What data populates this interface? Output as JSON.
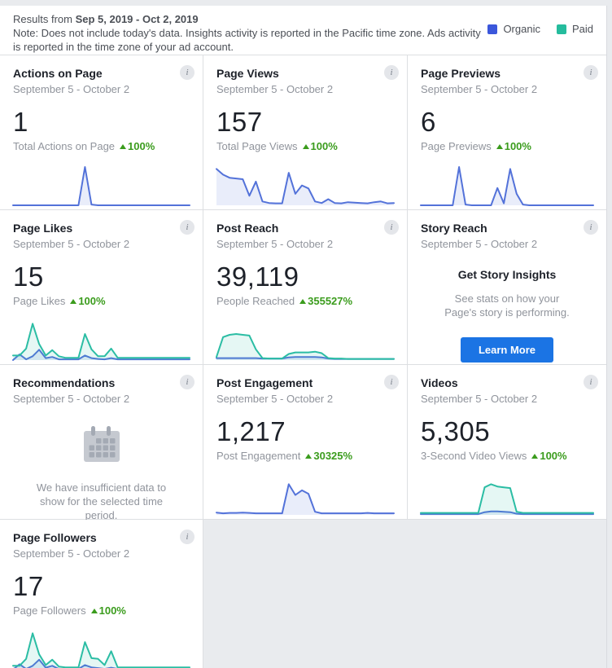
{
  "colors": {
    "organic": "#3b57db",
    "paid": "#25bc9d",
    "organic_line": "#5372d9",
    "organic_fill": "rgba(83,114,217,0.13)",
    "paid_line": "#2bbda4",
    "paid_fill": "rgba(43,189,164,0.12)",
    "delta_green": "#3b9c1d",
    "button_blue": "#1b74e4"
  },
  "icons": {
    "info_glyph": "i"
  },
  "header": {
    "results_prefix": "Results from ",
    "date_range": "Sep 5, 2019 - Oct 2, 2019",
    "note": "Note: Does not include today's data. Insights activity is reported in the Pacific time zone. Ads activity is reported in the time zone of your ad account.",
    "legend": [
      {
        "label": "Organic",
        "color": "#3b57db"
      },
      {
        "label": "Paid",
        "color": "#25bc9d"
      }
    ]
  },
  "cards": [
    {
      "title": "Actions on Page",
      "date_range": "September 5 - October 2",
      "value": "1",
      "metric_label": "Total Actions on Page",
      "delta": "100%",
      "series": [
        {
          "name": "organic",
          "values": [
            0,
            0,
            0,
            0,
            0,
            0,
            0,
            0,
            0,
            0,
            0,
            1,
            0.02,
            0,
            0,
            0,
            0,
            0,
            0,
            0,
            0,
            0,
            0,
            0,
            0,
            0,
            0,
            0
          ]
        }
      ]
    },
    {
      "title": "Page Views",
      "date_range": "September 5 - October 2",
      "value": "157",
      "metric_label": "Total Page Views",
      "delta": "100%",
      "series": [
        {
          "name": "organic",
          "values": [
            0.95,
            0.8,
            0.72,
            0.7,
            0.68,
            0.25,
            0.62,
            0.1,
            0.06,
            0.05,
            0.05,
            0.85,
            0.3,
            0.52,
            0.44,
            0.1,
            0.06,
            0.16,
            0.06,
            0.05,
            0.08,
            0.07,
            0.06,
            0.05,
            0.08,
            0.1,
            0.05,
            0.06
          ]
        }
      ]
    },
    {
      "title": "Page Previews",
      "date_range": "September 5 - October 2",
      "value": "6",
      "metric_label": "Page Previews",
      "delta": "100%",
      "series": [
        {
          "name": "organic",
          "values": [
            0,
            0,
            0,
            0,
            0,
            0,
            1,
            0.02,
            0,
            0,
            0,
            0,
            0.45,
            0.05,
            0.95,
            0.3,
            0.02,
            0,
            0,
            0,
            0,
            0,
            0,
            0,
            0,
            0,
            0,
            0
          ]
        }
      ]
    },
    {
      "title": "Page Likes",
      "date_range": "September 5 - October 2",
      "value": "15",
      "metric_label": "Page Likes",
      "delta": "100%",
      "series": [
        {
          "name": "organic",
          "values": [
            0,
            0.15,
            0.02,
            0.1,
            0.27,
            0.05,
            0.08,
            0.02,
            0.02,
            0.02,
            0.02,
            0.12,
            0.05,
            0.03,
            0.02,
            0.05,
            0.02,
            0.02,
            0.02,
            0.02,
            0.02,
            0.02,
            0.02,
            0.02,
            0.02,
            0.02,
            0.02,
            0.02
          ]
        },
        {
          "name": "paid",
          "values": [
            0.12,
            0.12,
            0.3,
            0.95,
            0.42,
            0.12,
            0.26,
            0.1,
            0.06,
            0.06,
            0.06,
            0.68,
            0.28,
            0.1,
            0.1,
            0.3,
            0.06,
            0.06,
            0.06,
            0.06,
            0.06,
            0.06,
            0.06,
            0.06,
            0.06,
            0.06,
            0.06,
            0.06
          ]
        }
      ]
    },
    {
      "title": "Post Reach",
      "date_range": "September 5 - October 2",
      "value": "39,119",
      "metric_label": "People Reached",
      "delta": "355527%",
      "series": [
        {
          "name": "organic",
          "values": [
            0.05,
            0.05,
            0.05,
            0.05,
            0.05,
            0.05,
            0.05,
            0.04,
            0.04,
            0.04,
            0.04,
            0.07,
            0.08,
            0.08,
            0.08,
            0.08,
            0.07,
            0.04,
            0.03,
            0.03,
            0.03,
            0.03,
            0.03,
            0.03,
            0.03,
            0.03,
            0.03,
            0.03
          ]
        },
        {
          "name": "paid",
          "values": [
            0.08,
            0.6,
            0.66,
            0.68,
            0.66,
            0.64,
            0.28,
            0.05,
            0.04,
            0.04,
            0.04,
            0.16,
            0.2,
            0.2,
            0.2,
            0.22,
            0.18,
            0.05,
            0.04,
            0.04,
            0.03,
            0.03,
            0.03,
            0.03,
            0.03,
            0.03,
            0.03,
            0.03
          ]
        }
      ]
    },
    {
      "title": "Story Reach",
      "date_range": "September 5 - October 2",
      "heading": "Get Story Insights",
      "body": "See stats on how your Page's story is performing.",
      "button_label": "Learn More"
    },
    {
      "title": "Recommendations",
      "date_range": "September 5 - October 2",
      "message": "We have insufficient data to show for the selected time period."
    },
    {
      "title": "Post Engagement",
      "date_range": "September 5 - October 2",
      "value": "1,217",
      "metric_label": "Post Engagement",
      "delta": "30325%",
      "series": [
        {
          "name": "organic",
          "values": [
            0.06,
            0.04,
            0.05,
            0.05,
            0.06,
            0.05,
            0.04,
            0.04,
            0.04,
            0.04,
            0.04,
            0.8,
            0.52,
            0.64,
            0.55,
            0.08,
            0.04,
            0.04,
            0.04,
            0.04,
            0.04,
            0.04,
            0.04,
            0.05,
            0.04,
            0.04,
            0.04,
            0.04
          ]
        }
      ]
    },
    {
      "title": "Videos",
      "date_range": "September 5 - October 2",
      "value": "5,305",
      "metric_label": "3-Second Video Views",
      "delta": "100%",
      "series": [
        {
          "name": "organic",
          "values": [
            0.02,
            0.02,
            0.02,
            0.02,
            0.02,
            0.02,
            0.02,
            0.02,
            0.02,
            0.02,
            0.07,
            0.09,
            0.09,
            0.08,
            0.07,
            0.03,
            0.02,
            0.02,
            0.02,
            0.02,
            0.02,
            0.02,
            0.02,
            0.02,
            0.02,
            0.02,
            0.02,
            0.02
          ]
        },
        {
          "name": "paid",
          "values": [
            0.05,
            0.05,
            0.05,
            0.05,
            0.05,
            0.05,
            0.05,
            0.05,
            0.05,
            0.05,
            0.72,
            0.8,
            0.74,
            0.72,
            0.7,
            0.08,
            0.05,
            0.05,
            0.05,
            0.05,
            0.05,
            0.05,
            0.05,
            0.05,
            0.05,
            0.05,
            0.05,
            0.05
          ]
        }
      ]
    },
    {
      "title": "Page Followers",
      "date_range": "September 5 - October 2",
      "value": "17",
      "metric_label": "Page Followers",
      "delta": "100%",
      "series": [
        {
          "name": "organic",
          "values": [
            0,
            0.14,
            0.02,
            0.1,
            0.26,
            0.05,
            0.1,
            0.02,
            0.02,
            0.02,
            0.02,
            0.12,
            0.06,
            0.04,
            0.02,
            0.05,
            0.02,
            0.02,
            0.02,
            0.02,
            0.02,
            0.02,
            0.02,
            0.02,
            0.02,
            0.02,
            0.02,
            0.02
          ]
        },
        {
          "name": "paid",
          "values": [
            0.1,
            0.1,
            0.28,
            0.95,
            0.4,
            0.12,
            0.26,
            0.08,
            0.06,
            0.06,
            0.06,
            0.72,
            0.3,
            0.28,
            0.12,
            0.48,
            0.06,
            0.06,
            0.06,
            0.06,
            0.06,
            0.06,
            0.06,
            0.06,
            0.06,
            0.06,
            0.06,
            0.06
          ]
        }
      ]
    }
  ]
}
